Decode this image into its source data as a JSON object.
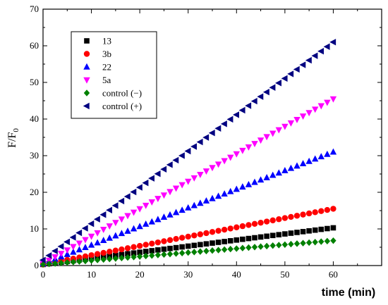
{
  "chart_data": {
    "type": "scatter",
    "title": "",
    "xlabel": "time (min)",
    "ylabel_main": "F/F",
    "ylabel_sub": "0",
    "xlim": [
      0,
      70
    ],
    "ylim": [
      0,
      70
    ],
    "xticks": [
      0,
      10,
      20,
      30,
      40,
      50,
      60
    ],
    "yticks": [
      0,
      10,
      20,
      30,
      40,
      50,
      60,
      70
    ],
    "grid": false,
    "legend_position": "top-left",
    "x_start": 0,
    "x_end": 60,
    "x_step": 1.25,
    "series": [
      {
        "name": "13",
        "marker": "square",
        "color": "#000000",
        "y_start": 0.3,
        "y_end": 10.3
      },
      {
        "name": "3b",
        "marker": "circle",
        "color": "#ff0000",
        "y_start": 0.3,
        "y_end": 15.5
      },
      {
        "name": "22",
        "marker": "triangle-up",
        "color": "#0000ff",
        "y_start": 0.5,
        "y_end": 31.0
      },
      {
        "name": "5a",
        "marker": "triangle-down",
        "color": "#ff00ff",
        "y_start": 0.5,
        "y_end": 45.5
      },
      {
        "name": "control (−)",
        "marker": "diamond",
        "color": "#008000",
        "y_start": 0.3,
        "y_end": 6.8
      },
      {
        "name": "control (+)",
        "marker": "triangle-left",
        "color": "#000080",
        "y_start": 1.5,
        "y_end": 61.0
      }
    ]
  }
}
